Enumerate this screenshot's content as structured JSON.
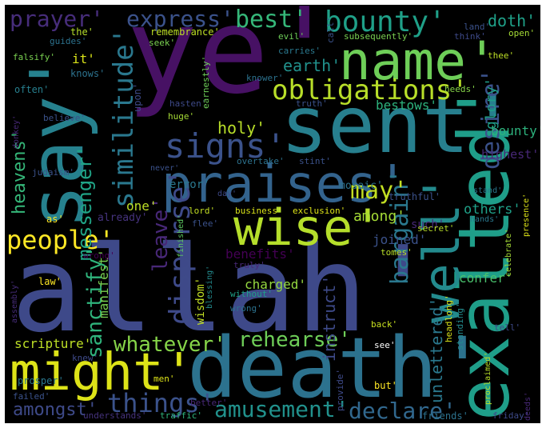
{
  "words": [
    {
      "id": "allah",
      "text": "allah'",
      "color": "#3e4989"
    },
    {
      "id": "ye",
      "text": "ye'",
      "color": "#471164"
    },
    {
      "id": "sent",
      "text": "sent'",
      "color": "#277f8e"
    },
    {
      "id": "say",
      "text": "say'",
      "color": "#26818e"
    },
    {
      "id": "death",
      "text": "death'",
      "color": "#2c728e"
    },
    {
      "id": "exalted",
      "text": "exalted'",
      "color": "#1f9e89"
    },
    {
      "id": "praises",
      "text": "praises'",
      "color": "#33638d"
    },
    {
      "id": "name",
      "text": "name'",
      "color": "#6ece58"
    },
    {
      "id": "might",
      "text": "might'",
      "color": "#dde318"
    },
    {
      "id": "wise",
      "text": "wise'",
      "color": "#b5de2b"
    },
    {
      "id": "well",
      "text": "well'",
      "color": "#238a8d"
    },
    {
      "id": "bounty",
      "text": "bounty'",
      "color": "#1fa088"
    },
    {
      "id": "obligations",
      "text": "obligations'",
      "color": "#b8de29"
    },
    {
      "id": "signs",
      "text": "signs'",
      "color": "#3b528b"
    },
    {
      "id": "people",
      "text": "people'",
      "color": "#fde725"
    },
    {
      "id": "similitude",
      "text": "similitude'",
      "color": "#2a788e"
    },
    {
      "id": "express",
      "text": "express'",
      "color": "#3b528b"
    },
    {
      "id": "prayer",
      "text": "prayer'",
      "color": "#472d7b"
    },
    {
      "id": "best",
      "text": "best'",
      "color": "#35b779"
    },
    {
      "id": "disperse",
      "text": "disperse'",
      "color": "#3e4a89"
    },
    {
      "id": "amusement",
      "text": "amusement'",
      "color": "#21918c"
    },
    {
      "id": "rehearse",
      "text": "rehearse'",
      "color": "#6ece58"
    },
    {
      "id": "declare",
      "text": "declare'",
      "color": "#31688e"
    },
    {
      "id": "things",
      "text": "things'",
      "color": "#3b528b"
    },
    {
      "id": "whatever",
      "text": "whatever'",
      "color": "#86d549"
    },
    {
      "id": "bargain",
      "text": "bargain'",
      "color": "#2a788e"
    },
    {
      "id": "desire",
      "text": "desire'",
      "color": "#3b528b"
    },
    {
      "id": "may",
      "text": "may'",
      "color": "#c2df23"
    },
    {
      "id": "leave",
      "text": "leave'",
      "color": "#482878"
    },
    {
      "id": "messenger",
      "text": "messenger'",
      "color": "#20a486"
    },
    {
      "id": "heavens",
      "text": "heavens'",
      "color": "#35b779"
    },
    {
      "id": "sanctify",
      "text": "sanctify'",
      "color": "#2fb47c"
    },
    {
      "id": "amongst",
      "text": "amongst'",
      "color": "#3e4a89"
    },
    {
      "id": "holy",
      "text": "holy'",
      "color": "#b8de29"
    },
    {
      "id": "earth",
      "text": "earth'",
      "color": "#21918c"
    },
    {
      "id": "doth",
      "text": "doth'",
      "color": "#1fa088"
    },
    {
      "id": "glory",
      "text": "glory'",
      "color": "#1f9e89"
    },
    {
      "id": "instruct",
      "text": "instruct'",
      "color": "#3e4a89"
    },
    {
      "id": "unlettered",
      "text": "unlettered'",
      "color": "#2a788e"
    },
    {
      "id": "bounty2",
      "text": "bounty'",
      "color": "#2db27d"
    },
    {
      "id": "bestows",
      "text": "bestows'",
      "color": "#2db27d"
    },
    {
      "id": "highest",
      "text": "highest'",
      "color": "#482878"
    },
    {
      "id": "among",
      "text": "among'",
      "color": "#a5db36"
    },
    {
      "id": "others",
      "text": "others'",
      "color": "#1fa088"
    },
    {
      "id": "joined",
      "text": "joined'",
      "color": "#3b528b"
    },
    {
      "id": "benefits",
      "text": "benefits'",
      "color": "#440154"
    },
    {
      "id": "charged",
      "text": "charged'",
      "color": "#95d840"
    },
    {
      "id": "confer",
      "text": "confer'",
      "color": "#4ac16d"
    },
    {
      "id": "wisdom",
      "text": "wisdom'",
      "color": "#c2df23"
    },
    {
      "id": "manifest",
      "text": "manifest'",
      "color": "#7ad151"
    },
    {
      "id": "scripture",
      "text": "scripture'",
      "color": "#bddf26"
    },
    {
      "id": "one",
      "text": "one'",
      "color": "#bddf26"
    },
    {
      "id": "it",
      "text": "it'",
      "color": "#d8e219"
    },
    {
      "id": "the",
      "text": "the'",
      "color": "#b5de2b"
    },
    {
      "id": "error",
      "text": "error'",
      "color": "#2a788e"
    },
    {
      "id": "mosaic",
      "text": "mosaic'",
      "color": "#2c728e"
    },
    {
      "id": "already",
      "text": "already'",
      "color": "#46337e"
    },
    {
      "id": "as",
      "text": "as'",
      "color": "#fde725"
    },
    {
      "id": "law",
      "text": "law'",
      "color": "#fde725"
    },
    {
      "id": "such",
      "text": "such'",
      "color": "#482878"
    },
    {
      "id": "upon",
      "text": "upon'",
      "color": "#3e4a89"
    },
    {
      "id": "knows",
      "text": "knows'",
      "color": "#2c728e"
    },
    {
      "id": "often",
      "text": "often'",
      "color": "#277f8e"
    },
    {
      "id": "believe",
      "text": "believe'",
      "color": "#3b528b"
    },
    {
      "id": "donkey",
      "text": "donkey'",
      "color": "#482878"
    },
    {
      "id": "judaism",
      "text": "judaism'",
      "color": "#3b528b"
    },
    {
      "id": "wrong",
      "text": "wrong'",
      "color": "#440154"
    },
    {
      "id": "wrong2",
      "text": "wrong'",
      "color": "#2c728e"
    },
    {
      "id": "assembly",
      "text": "assembly'",
      "color": "#472d7b"
    },
    {
      "id": "prosper",
      "text": "prosper'",
      "color": "#2a788e"
    },
    {
      "id": "knew",
      "text": "knew'",
      "color": "#3e4a89"
    },
    {
      "id": "men",
      "text": "men'",
      "color": "#dde318"
    },
    {
      "id": "failed",
      "text": "failed'",
      "color": "#3b528b"
    },
    {
      "id": "understands",
      "text": "understands'",
      "color": "#46337e"
    },
    {
      "id": "traffic",
      "text": "traffic'",
      "color": "#2fb47c"
    },
    {
      "id": "better",
      "text": "better'",
      "color": "#482878"
    },
    {
      "id": "friends",
      "text": "friends'",
      "color": "#2c728e"
    },
    {
      "id": "friday",
      "text": "friday'",
      "color": "#3e4a89"
    },
    {
      "id": "deeds",
      "text": "deeds'",
      "color": "#482878"
    },
    {
      "id": "but",
      "text": "but'",
      "color": "#fde725"
    },
    {
      "id": "see",
      "text": "see'",
      "color": "#ffffff"
    },
    {
      "id": "back",
      "text": "back'",
      "color": "#c8e020"
    },
    {
      "id": "provide",
      "text": "provide'",
      "color": "#3e4a89"
    },
    {
      "id": "proclaimed",
      "text": "proclaimed'",
      "color": "#b8de29"
    },
    {
      "id": "standing",
      "text": "standing'",
      "color": "#238a8d"
    },
    {
      "id": "headlong",
      "text": "headlong'",
      "color": "#d8e219"
    },
    {
      "id": "tell",
      "text": "tell'",
      "color": "#3e4a89"
    },
    {
      "id": "celebrate",
      "text": "celebrate'",
      "color": "#a5db36"
    },
    {
      "id": "presence",
      "text": "presence'",
      "color": "#dde318"
    },
    {
      "id": "tomes",
      "text": "tomes'",
      "color": "#b8de29"
    },
    {
      "id": "secret",
      "text": "secret'",
      "color": "#b8de29"
    },
    {
      "id": "hands",
      "text": "hands'",
      "color": "#2a788e"
    },
    {
      "id": "stand",
      "text": "stand'",
      "color": "#2a788e"
    },
    {
      "id": "truthful",
      "text": "truthful'",
      "color": "#3b528b"
    },
    {
      "id": "day",
      "text": "day'",
      "color": "#3e4a89"
    },
    {
      "id": "exclusion",
      "text": "exclusion'",
      "color": "#dde318"
    },
    {
      "id": "business",
      "text": "business'",
      "color": "#d8e219"
    },
    {
      "id": "lord",
      "text": "lord'",
      "color": "#c2df23"
    },
    {
      "id": "flee",
      "text": "flee'",
      "color": "#3b528b"
    },
    {
      "id": "finished",
      "text": "finished'",
      "color": "#5ec962"
    },
    {
      "id": "truly",
      "text": "truly'",
      "color": "#482878"
    },
    {
      "id": "blessing",
      "text": "blessing'",
      "color": "#238a8d"
    },
    {
      "id": "without",
      "text": "without'",
      "color": "#1fa088"
    },
    {
      "id": "never",
      "text": "never'",
      "color": "#3b528b"
    },
    {
      "id": "overtake",
      "text": "overtake'",
      "color": "#2c728e"
    },
    {
      "id": "stint",
      "text": "stint'",
      "color": "#3b528b"
    },
    {
      "id": "huge",
      "text": "huge'",
      "color": "#a5db36"
    },
    {
      "id": "hasten",
      "text": "hasten'",
      "color": "#3e4a89"
    },
    {
      "id": "truth",
      "text": "truth'",
      "color": "#3b528b"
    },
    {
      "id": "earnestly",
      "text": "earnestly'",
      "color": "#6ece58"
    },
    {
      "id": "knower",
      "text": "knower'",
      "color": "#2c728e"
    },
    {
      "id": "carries",
      "text": "carries'",
      "color": "#2a788e"
    },
    {
      "id": "heeds",
      "text": "heeds'",
      "color": "#86d549"
    },
    {
      "id": "thee",
      "text": "thee'",
      "color": "#bddf26"
    },
    {
      "id": "land",
      "text": "land'",
      "color": "#3b528b"
    },
    {
      "id": "open",
      "text": "open'",
      "color": "#a5db36"
    },
    {
      "id": "think",
      "text": "think'",
      "color": "#3e4a89"
    },
    {
      "id": "subsequently",
      "text": "subsequently'",
      "color": "#7ad151"
    },
    {
      "id": "call",
      "text": "call'",
      "color": "#3b528b"
    },
    {
      "id": "evil",
      "text": "evil'",
      "color": "#6ece58"
    },
    {
      "id": "remembrance",
      "text": "remembrance'",
      "color": "#bddf26"
    },
    {
      "id": "seek",
      "text": "seek'",
      "color": "#7ad151"
    },
    {
      "id": "guides",
      "text": "guides'",
      "color": "#2c728e"
    },
    {
      "id": "falsify",
      "text": "falsify'",
      "color": "#7ad151"
    }
  ]
}
